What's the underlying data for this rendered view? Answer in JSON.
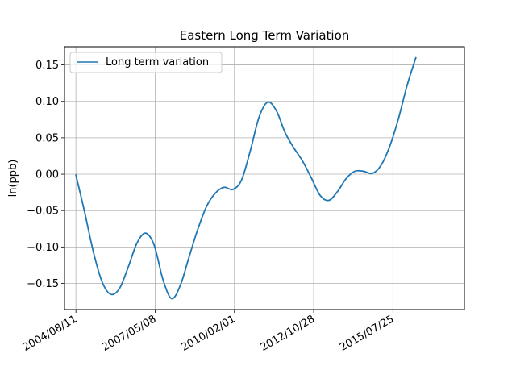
{
  "chart_data": {
    "type": "line",
    "title": "Eastern Long Term Variation",
    "xlabel": "",
    "ylabel": "ln(ppb)",
    "xlim": [
      "2004/03/20",
      "2018/01/12"
    ],
    "ylim": [
      -0.186,
      0.175
    ],
    "grid": true,
    "legend_position": "top-left",
    "x_ticks": [
      "2004/08/11",
      "2007/05/08",
      "2010/02/01",
      "2012/10/28",
      "2015/07/25"
    ],
    "y_ticks": [
      "−0.15",
      "−0.10",
      "−0.05",
      "0.00",
      "0.05",
      "0.10",
      "0.15"
    ],
    "y_tick_values": [
      -0.15,
      -0.1,
      -0.05,
      0.0,
      0.05,
      0.1,
      0.15
    ],
    "series": [
      {
        "name": "Long term variation",
        "color": "#1f77b4",
        "points": [
          [
            "2004/08/11",
            -0.001
          ],
          [
            "2004/11/29",
            -0.052
          ],
          [
            "2005/03/20",
            -0.107
          ],
          [
            "2005/07/08",
            -0.148
          ],
          [
            "2005/10/25",
            -0.165
          ],
          [
            "2006/02/12",
            -0.157
          ],
          [
            "2006/06/01",
            -0.128
          ],
          [
            "2006/09/19",
            -0.095
          ],
          [
            "2007/01/07",
            -0.081
          ],
          [
            "2007/04/27",
            -0.098
          ],
          [
            "2007/08/15",
            -0.145
          ],
          [
            "2007/12/03",
            -0.171
          ],
          [
            "2008/03/23",
            -0.152
          ],
          [
            "2008/07/11",
            -0.113
          ],
          [
            "2008/10/29",
            -0.075
          ],
          [
            "2009/02/16",
            -0.044
          ],
          [
            "2009/06/06",
            -0.026
          ],
          [
            "2009/09/24",
            -0.018
          ],
          [
            "2010/01/12",
            -0.021
          ],
          [
            "2010/05/02",
            -0.008
          ],
          [
            "2010/08/20",
            0.032
          ],
          [
            "2010/12/08",
            0.078
          ],
          [
            "2011/03/28",
            0.099
          ],
          [
            "2011/07/16",
            0.087
          ],
          [
            "2011/11/03",
            0.057
          ],
          [
            "2012/02/21",
            0.036
          ],
          [
            "2012/06/10",
            0.018
          ],
          [
            "2012/09/28",
            -0.005
          ],
          [
            "2013/01/16",
            -0.029
          ],
          [
            "2013/05/06",
            -0.036
          ],
          [
            "2013/08/24",
            -0.024
          ],
          [
            "2013/12/12",
            -0.006
          ],
          [
            "2014/03/31",
            0.004
          ],
          [
            "2014/07/19",
            0.004
          ],
          [
            "2014/11/06",
            0.001
          ],
          [
            "2015/02/24",
            0.012
          ],
          [
            "2015/06/14",
            0.038
          ],
          [
            "2015/10/02",
            0.076
          ],
          [
            "2016/01/20",
            0.122
          ],
          [
            "2016/05/09",
            0.16
          ]
        ]
      }
    ]
  }
}
